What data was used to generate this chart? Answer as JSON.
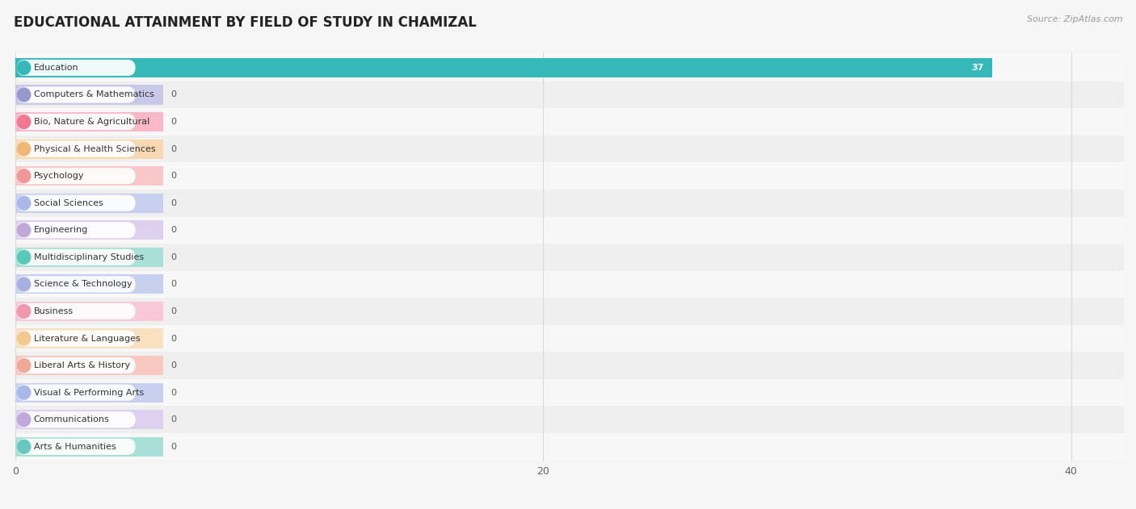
{
  "title": "EDUCATIONAL ATTAINMENT BY FIELD OF STUDY IN CHAMIZAL",
  "source": "Source: ZipAtlas.com",
  "categories": [
    "Education",
    "Computers & Mathematics",
    "Bio, Nature & Agricultural",
    "Physical & Health Sciences",
    "Psychology",
    "Social Sciences",
    "Engineering",
    "Multidisciplinary Studies",
    "Science & Technology",
    "Business",
    "Literature & Languages",
    "Liberal Arts & History",
    "Visual & Performing Arts",
    "Communications",
    "Arts & Humanities"
  ],
  "values": [
    37,
    0,
    0,
    0,
    0,
    0,
    0,
    0,
    0,
    0,
    0,
    0,
    0,
    0,
    0
  ],
  "bar_colors": [
    "#34b8b8",
    "#9898d0",
    "#f07890",
    "#f0b878",
    "#f09898",
    "#a8b8e8",
    "#c0a8d8",
    "#58c8b8",
    "#a8b0e0",
    "#f098b0",
    "#f0c890",
    "#f0a898",
    "#a8b8e8",
    "#c0a8d8",
    "#68c8c0"
  ],
  "bar_bg_colors": [
    "#34b8b8",
    "#c8c8e8",
    "#f8b8c8",
    "#f8d8b0",
    "#f8c8c8",
    "#c8d0f0",
    "#ddd0ee",
    "#a8e0d8",
    "#c8d0f0",
    "#f8c8d8",
    "#f8e0c0",
    "#f8c8c0",
    "#c8d0f0",
    "#ddd0ee",
    "#a8e0d8"
  ],
  "pill_bg": "#ffffff",
  "xlim_data": [
    0,
    42
  ],
  "xticks": [
    0,
    20,
    40
  ],
  "row_colors": [
    "#f7f7f7",
    "#efefef"
  ],
  "background_color": "#f5f5f5",
  "title_fontsize": 12,
  "label_fontsize": 8,
  "value_fontsize": 8,
  "grid_color": "#d8d8d8"
}
